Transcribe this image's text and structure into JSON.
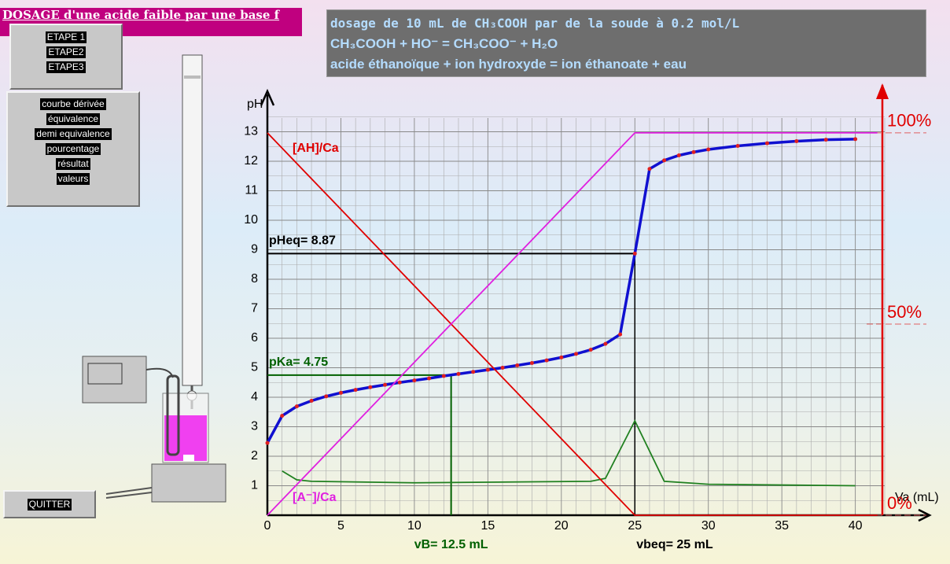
{
  "header": {
    "title": "DOSAGE d'une acide faible par une base f"
  },
  "steps": [
    "ETAPE 1",
    "ETAPE2",
    "ETAPE3"
  ],
  "options": [
    "courbe dérivée",
    "équivalence",
    "demi equivalence",
    "pourcentage",
    "résultat",
    "valeurs"
  ],
  "quit": "QUITTER",
  "info": {
    "lines": [
      "dosage de 10 mL de CH₃COOH par de la soude à 0.2 mol/L",
      "CH₃COOH + HO⁻ = CH₃COO⁻ + H₂O",
      "acide éthanoïque + ion hydroxyde = ion éthanoate + eau"
    ]
  },
  "chart_data": {
    "type": "line",
    "ylabel": "pH",
    "xlabel": "Va (mL)",
    "xlim": [
      0,
      42
    ],
    "ylim": [
      0,
      14
    ],
    "y2lim": [
      0,
      108
    ],
    "xticks": [
      0,
      5,
      10,
      15,
      20,
      25,
      30,
      35,
      40
    ],
    "yticks": [
      1,
      2,
      3,
      4,
      5,
      6,
      7,
      8,
      9,
      10,
      11,
      12,
      13
    ],
    "y2ticks": [
      {
        "value": 0,
        "label": "0%"
      },
      {
        "value": 50,
        "label": "50%"
      },
      {
        "value": 100,
        "label": "100%"
      }
    ],
    "grid": true,
    "series": [
      {
        "color": "#1010d0",
        "marker_color": "#e02020",
        "x": [
          0,
          1,
          2,
          3,
          4,
          5,
          6,
          7,
          8,
          9,
          10,
          11,
          12,
          13,
          14,
          15,
          16,
          17,
          18,
          19,
          20,
          21,
          22,
          23,
          24,
          25,
          26,
          27,
          28,
          29,
          30,
          32,
          34,
          36,
          38,
          40
        ],
        "values": [
          2.45,
          3.37,
          3.69,
          3.88,
          4.03,
          4.15,
          4.25,
          4.34,
          4.42,
          4.5,
          4.57,
          4.64,
          4.72,
          4.79,
          4.86,
          4.93,
          5.0,
          5.08,
          5.16,
          5.25,
          5.35,
          5.47,
          5.61,
          5.81,
          6.13,
          8.87,
          11.74,
          12.03,
          12.2,
          12.31,
          12.4,
          12.52,
          12.61,
          12.68,
          12.73,
          12.75
        ]
      },
      {
        "color": "#208020",
        "x": [
          1,
          2,
          3,
          10,
          22,
          23,
          25,
          27,
          30,
          40
        ],
        "values": [
          1.5,
          1.2,
          1.15,
          1.1,
          1.15,
          1.25,
          3.2,
          1.15,
          1.05,
          1.0
        ]
      },
      {
        "name": "[AH]/Ca",
        "color": "#e00000",
        "axis": "y2",
        "x": [
          0,
          25,
          41.5
        ],
        "values": [
          100,
          0,
          0
        ]
      },
      {
        "name": "[A⁻]/Ca",
        "color": "#e020e0",
        "axis": "y2",
        "x": [
          0,
          25,
          41.5
        ],
        "values": [
          0,
          100,
          100
        ]
      }
    ],
    "equivalence": {
      "x": 25,
      "y": 8.87,
      "x_label": "vbeq= 25 mL",
      "y_label": "pHeq= 8.87"
    },
    "half_equivalence": {
      "x": 12.5,
      "y": 4.75,
      "x_label": "vB= 12.5 mL",
      "y_label": "pKa= 4.75"
    }
  }
}
